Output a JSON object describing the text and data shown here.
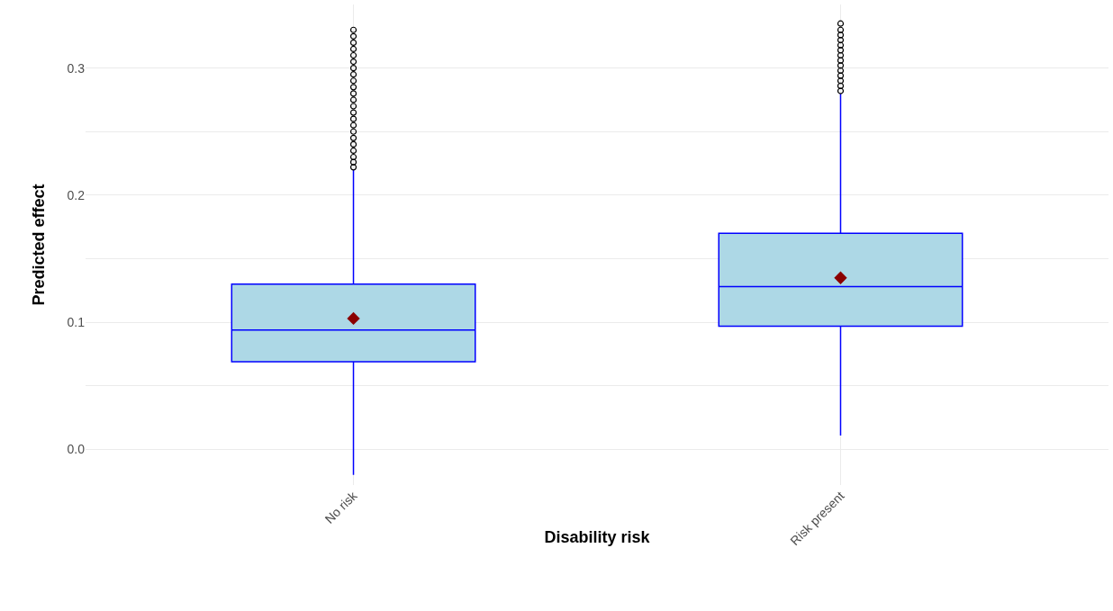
{
  "chart_data": {
    "type": "box",
    "xlabel": "Disability risk",
    "ylabel": "Predicted effect",
    "categories": [
      "No risk",
      "Risk present"
    ],
    "color": "#add8e6",
    "series": [
      {
        "color": "#0000ff",
        "boxes": [
          {
            "low": -0.02,
            "q1": 0.069,
            "median": 0.094,
            "q3": 0.13,
            "high": 0.22,
            "outliers": [
              0.222,
              0.226,
              0.23,
              0.235,
              0.24,
              0.245,
              0.25,
              0.255,
              0.26,
              0.265,
              0.27,
              0.275,
              0.28,
              0.285,
              0.29,
              0.295,
              0.3,
              0.305,
              0.31,
              0.315,
              0.32,
              0.325,
              0.33
            ]
          },
          {
            "low": 0.011,
            "q1": 0.097,
            "median": 0.128,
            "q3": 0.17,
            "high": 0.28,
            "outliers": [
              0.282,
              0.286,
              0.29,
              0.294,
              0.298,
              0.302,
              0.306,
              0.31,
              0.314,
              0.318,
              0.322,
              0.326,
              0.33,
              0.335
            ]
          }
        ]
      },
      {
        "type": "scatter",
        "color": "#8b0000",
        "marker": "diamond",
        "x": [
          "No risk",
          "Risk present"
        ],
        "values": [
          0.103,
          0.135
        ]
      }
    ],
    "ylim": [
      -0.028,
      0.35
    ],
    "yticks": [
      {
        "value": 0.0,
        "label": "0.0"
      },
      {
        "value": 0.05,
        "label": null
      },
      0.1,
      {
        "value": 0.15,
        "label": null
      },
      0.2,
      {
        "value": 0.25,
        "label": null
      },
      0.3
    ],
    "grid": true
  }
}
